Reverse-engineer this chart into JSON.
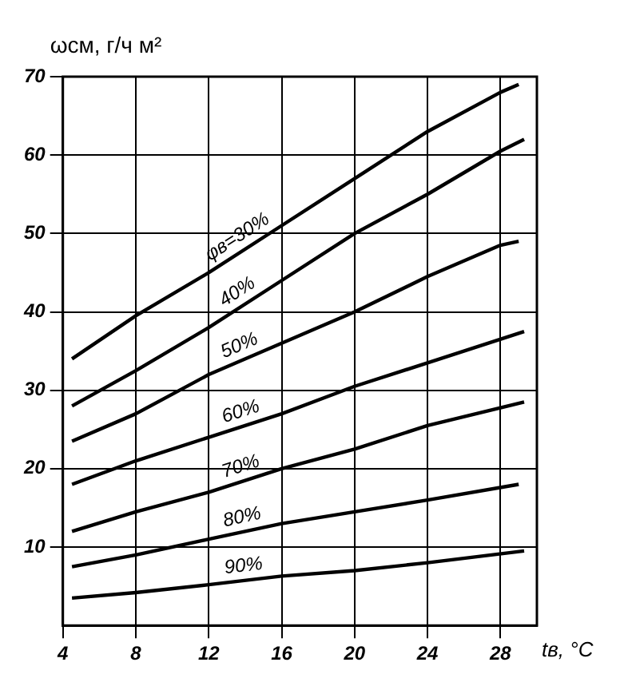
{
  "chart_data": {
    "type": "line",
    "xlabel": "tв, °C",
    "ylabel": "ωсм, г/ч м²",
    "xlim": [
      4,
      30
    ],
    "xticks": [
      4,
      8,
      12,
      16,
      20,
      24,
      28
    ],
    "ylim": [
      0,
      70
    ],
    "yticks": [
      10,
      20,
      30,
      40,
      50,
      60,
      70
    ],
    "grid": true,
    "legend": false,
    "marker": "none",
    "line_style": "solid",
    "series": [
      {
        "name": "φв=30%",
        "color": "#000000",
        "x": [
          4.5,
          8,
          12,
          16,
          20,
          24,
          28,
          29
        ],
        "values": [
          34,
          39.5,
          45,
          51,
          57,
          63,
          68,
          69
        ]
      },
      {
        "name": "40%",
        "color": "#000000",
        "x": [
          4.5,
          8,
          12,
          16,
          20,
          24,
          28,
          29.3
        ],
        "values": [
          28,
          32.5,
          38,
          44,
          50,
          55,
          60.5,
          62
        ]
      },
      {
        "name": "50%",
        "color": "#000000",
        "x": [
          4.5,
          8,
          12,
          16,
          20,
          24,
          28,
          29
        ],
        "values": [
          23.5,
          27,
          32,
          36,
          40,
          44.5,
          48.5,
          49
        ]
      },
      {
        "name": "60%",
        "color": "#000000",
        "x": [
          4.5,
          8,
          12,
          16,
          20,
          24,
          29.3
        ],
        "values": [
          18,
          21,
          24,
          27,
          30.5,
          33.5,
          37.5
        ]
      },
      {
        "name": "70%",
        "color": "#000000",
        "x": [
          4.5,
          8,
          12,
          16,
          20,
          24,
          29.3
        ],
        "values": [
          12,
          14.5,
          17,
          20,
          22.5,
          25.5,
          28.5
        ]
      },
      {
        "name": "80%",
        "color": "#000000",
        "x": [
          4.5,
          8,
          12,
          16,
          20,
          24,
          29
        ],
        "values": [
          7.5,
          9,
          11,
          13,
          14.5,
          16,
          18
        ]
      },
      {
        "name": "90%",
        "color": "#000000",
        "x": [
          4.5,
          8,
          12,
          16,
          20,
          24,
          29.3
        ],
        "values": [
          3.5,
          4.2,
          5.2,
          6.3,
          7,
          8,
          9.5
        ]
      }
    ]
  }
}
